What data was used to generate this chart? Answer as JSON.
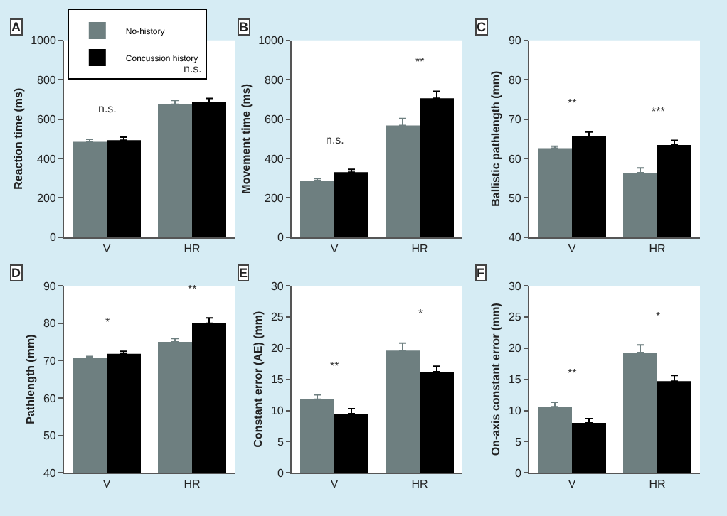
{
  "chart_data": [
    {
      "type": "bar",
      "title": "A",
      "ylabel": "Reaction time (ms)",
      "categories": [
        "V",
        "HR"
      ],
      "ylim": [
        0,
        1000
      ],
      "yticks": [
        0,
        200,
        400,
        600,
        800,
        1000
      ],
      "grid": false,
      "legend": "top left",
      "series": [
        {
          "name": "No-history",
          "color": "#6e7f80",
          "values": [
            485,
            675
          ],
          "errors": [
            [
              485,
              497
            ],
            [
              675,
              695
            ]
          ]
        },
        {
          "name": "Concussion history",
          "color": "#000000",
          "values": [
            493,
            685
          ],
          "errors": [
            [
              493,
              508
            ],
            [
              685,
              705
            ]
          ]
        }
      ],
      "annotations": [
        "n.s.",
        "n.s."
      ]
    },
    {
      "type": "bar",
      "title": "B",
      "ylabel": "Movement time (ms)",
      "categories": [
        "V",
        "HR"
      ],
      "ylim": [
        0,
        1000
      ],
      "yticks": [
        0,
        200,
        400,
        600,
        800,
        1000
      ],
      "grid": false,
      "series": [
        {
          "color": "#6e7f80",
          "values": [
            288,
            568
          ],
          "errors": [
            [
              288,
              298
            ],
            [
              568,
              603
            ]
          ]
        },
        {
          "color": "#000000",
          "values": [
            330,
            706
          ],
          "errors": [
            [
              330,
              345
            ],
            [
              706,
              741
            ]
          ]
        }
      ],
      "annotations": [
        "n.s.",
        "**"
      ]
    },
    {
      "type": "bar",
      "title": "C",
      "ylabel": "Ballistic pathlength (mm)",
      "categories": [
        "V",
        "HR"
      ],
      "ylim": [
        40,
        90
      ],
      "yticks": [
        40,
        50,
        60,
        70,
        80,
        90
      ],
      "grid": false,
      "series": [
        {
          "color": "#6e7f80",
          "values": [
            62.6,
            56.4
          ],
          "errors": [
            [
              62.6,
              63.1
            ],
            [
              56.4,
              57.6
            ]
          ]
        },
        {
          "color": "#000000",
          "values": [
            65.6,
            63.4
          ],
          "errors": [
            [
              65.6,
              66.7
            ],
            [
              63.4,
              64.6
            ]
          ]
        }
      ],
      "annotations": [
        "**",
        "***"
      ]
    },
    {
      "type": "bar",
      "title": "D",
      "ylabel": "Pathlength (mm)",
      "categories": [
        "V",
        "HR"
      ],
      "ylim": [
        40,
        90
      ],
      "yticks": [
        40,
        50,
        60,
        70,
        80,
        90
      ],
      "grid": false,
      "series": [
        {
          "color": "#6e7f80",
          "values": [
            70.7,
            75.0
          ],
          "errors": [
            [
              70.7,
              71.1
            ],
            [
              75.0,
              75.9
            ]
          ]
        },
        {
          "color": "#000000",
          "values": [
            71.8,
            80.0
          ],
          "errors": [
            [
              71.8,
              72.5
            ],
            [
              80.0,
              81.4
            ]
          ]
        }
      ],
      "annotations": [
        "*",
        "**"
      ]
    },
    {
      "type": "bar",
      "title": "E",
      "ylabel": "Constant error (AE) (mm)",
      "categories": [
        "V",
        "HR"
      ],
      "ylim": [
        0,
        30
      ],
      "yticks": [
        0,
        5,
        10,
        15,
        20,
        25,
        30
      ],
      "grid": false,
      "series": [
        {
          "color": "#6e7f80",
          "values": [
            11.8,
            19.6
          ],
          "errors": [
            [
              11.8,
              12.5
            ],
            [
              19.6,
              20.8
            ]
          ]
        },
        {
          "color": "#000000",
          "values": [
            9.5,
            16.2
          ],
          "errors": [
            [
              9.5,
              10.3
            ],
            [
              16.2,
              17.1
            ]
          ]
        }
      ],
      "annotations": [
        "**",
        "*"
      ]
    },
    {
      "type": "bar",
      "title": "F",
      "ylabel": "On-axis constant error (mm)",
      "categories": [
        "V",
        "HR"
      ],
      "ylim": [
        0,
        30
      ],
      "yticks": [
        0,
        5,
        10,
        15,
        20,
        25,
        30
      ],
      "grid": false,
      "series": [
        {
          "color": "#6e7f80",
          "values": [
            10.6,
            19.3
          ],
          "errors": [
            [
              10.6,
              11.3
            ],
            [
              19.3,
              20.5
            ]
          ]
        },
        {
          "color": "#000000",
          "values": [
            8.0,
            14.7
          ],
          "errors": [
            [
              8.0,
              8.7
            ],
            [
              14.7,
              15.6
            ]
          ]
        }
      ],
      "annotations": [
        "**",
        "*"
      ]
    }
  ]
}
